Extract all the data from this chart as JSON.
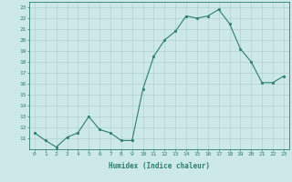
{
  "x": [
    0,
    1,
    2,
    3,
    4,
    5,
    6,
    7,
    8,
    9,
    10,
    11,
    12,
    13,
    14,
    15,
    16,
    17,
    18,
    19,
    20,
    21,
    22,
    23
  ],
  "y": [
    11.5,
    10.8,
    10.2,
    11.1,
    11.5,
    13.0,
    11.8,
    11.5,
    10.8,
    10.8,
    15.5,
    18.5,
    20.0,
    20.8,
    22.2,
    22.0,
    22.2,
    22.8,
    21.5,
    19.2,
    18.0,
    16.1,
    16.1,
    16.7
  ],
  "xlabel": "Humidex (Indice chaleur)",
  "xlim": [
    -0.5,
    23.5
  ],
  "ylim": [
    10,
    23.5
  ],
  "yticks": [
    11,
    12,
    13,
    14,
    15,
    16,
    17,
    18,
    19,
    20,
    21,
    22,
    23
  ],
  "xticks": [
    0,
    1,
    2,
    3,
    4,
    5,
    6,
    7,
    8,
    9,
    10,
    11,
    12,
    13,
    14,
    15,
    16,
    17,
    18,
    19,
    20,
    21,
    22,
    23
  ],
  "line_color": "#2e7d6e",
  "marker_color": "#2e7d6e",
  "bg_color": "#cce8e8",
  "grid_color": "#aacccc"
}
